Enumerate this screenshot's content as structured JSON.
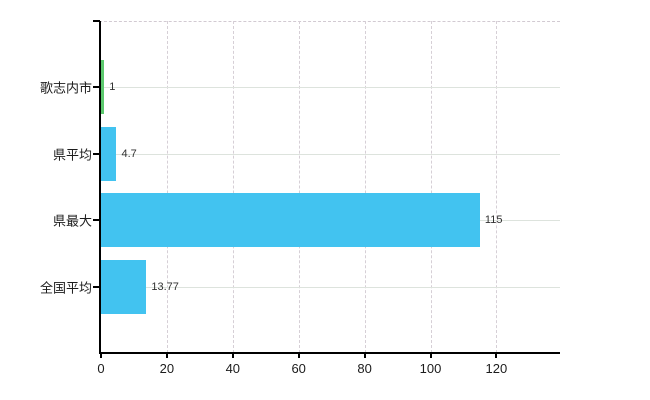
{
  "chart_data": {
    "type": "bar",
    "orientation": "horizontal",
    "title": "",
    "xlabel": "",
    "ylabel": "",
    "categories": [
      "歌志内市",
      "県平均",
      "県最大",
      "全国平均"
    ],
    "values": [
      1,
      4.7,
      115,
      13.77
    ],
    "value_labels": [
      "1",
      "4.7",
      "115",
      "13.77"
    ],
    "bar_colors": [
      "#5cc96e",
      "#42c3f0",
      "#42c3f0",
      "#42c3f0"
    ],
    "x_ticks": [
      0,
      20,
      40,
      60,
      80,
      100,
      120
    ],
    "x_tick_labels": [
      "0",
      "20",
      "40",
      "60",
      "80",
      "100",
      "120"
    ],
    "xlim": [
      0,
      139.3
    ],
    "grid": true,
    "grid_vertical_style": "dashed",
    "grid_horizontal_style": "solid",
    "legend": false
  },
  "colors": {
    "bar_blue": "#42c3f0",
    "bar_green": "#5cc96e",
    "axis": "#000000",
    "grid_vertical": "#d6cfd6",
    "grid_horizontal": "#dde3dd",
    "background": "#ffffff",
    "tick_label": "#1c1c1c",
    "value_label": "#303030"
  }
}
